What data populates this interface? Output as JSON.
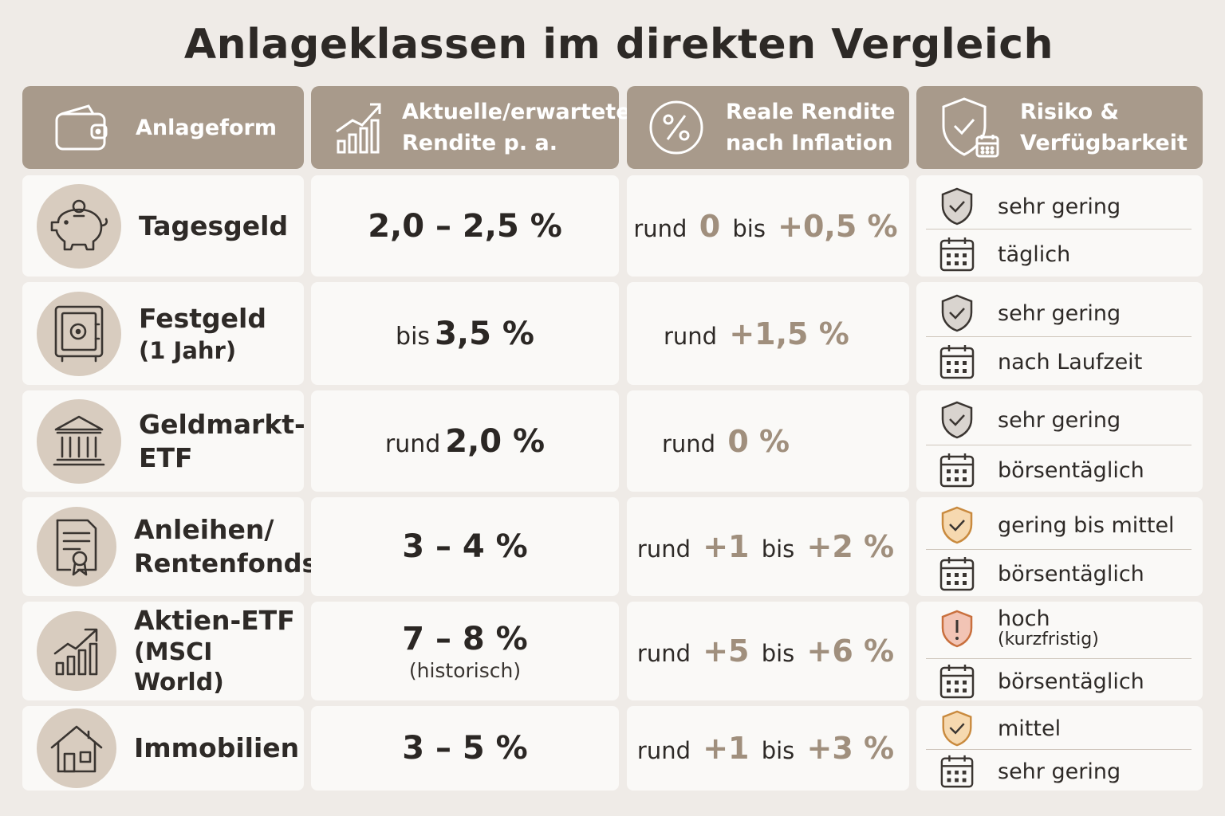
{
  "title": "Anlageklassen im direkten Vergleich",
  "headers": {
    "col1": "Anlageform",
    "col2_line1": "Aktuelle/erwartete",
    "col2_line2": "Rendite p. a.",
    "col3_line1": "Reale Rendite",
    "col3_line2": "nach Inflation",
    "col4_line1": "Risiko &",
    "col4_line2": "Verfügbarkeit"
  },
  "colors": {
    "header_bg": "#a89a8b",
    "icon_circle": "#d8ccbf",
    "accent_number": "#a08f7d",
    "shield_low": "#d9d4cf",
    "shield_medium": "#f6d9b0",
    "shield_high": "#f2c4b5"
  },
  "rows": [
    {
      "name": "Tagesgeld",
      "sub": "",
      "icon": "piggy-bank-icon",
      "return_prefix": "",
      "return_value": "2,0 – 2,5 %",
      "return_note": "",
      "real": {
        "w1": "rund",
        "n1": "0",
        "w2": "bis",
        "n2": "+0,5 %"
      },
      "risk": "sehr gering",
      "risk_sub": "",
      "risk_level": "low",
      "availability": "täglich"
    },
    {
      "name": "Festgeld",
      "sub": "(1 Jahr)",
      "icon": "safe-icon",
      "return_prefix": "bis",
      "return_value": "3,5 %",
      "return_note": "",
      "real": {
        "w1": "rund",
        "n1": "+1,5 %",
        "w2": "",
        "n2": ""
      },
      "risk": "sehr gering",
      "risk_sub": "",
      "risk_level": "low",
      "availability": "nach Laufzeit"
    },
    {
      "name": "Geldmarkt-",
      "sub": "ETF",
      "icon": "bank-building-icon",
      "return_prefix": "rund",
      "return_value": "2,0 %",
      "return_note": "",
      "real": {
        "w1": "rund",
        "n1": "0 %",
        "w2": "",
        "n2": ""
      },
      "risk": "sehr gering",
      "risk_sub": "",
      "risk_level": "low",
      "availability": "börsentäglich"
    },
    {
      "name": "Anleihen/",
      "sub": "Rentenfonds",
      "icon": "certificate-icon",
      "return_prefix": "",
      "return_value": "3 – 4 %",
      "return_note": "",
      "real": {
        "w1": "rund",
        "n1": "+1",
        "w2": "bis",
        "n2": "+2 %"
      },
      "risk": "gering bis mittel",
      "risk_sub": "",
      "risk_level": "medium",
      "availability": "börsentäglich"
    },
    {
      "name": "Aktien-ETF",
      "sub": "(MSCI World)",
      "icon": "growth-chart-icon",
      "return_prefix": "",
      "return_value": "7 – 8 %",
      "return_note": "(historisch)",
      "real": {
        "w1": "rund",
        "n1": "+5",
        "w2": "bis",
        "n2": "+6 %"
      },
      "risk": "hoch",
      "risk_sub": "(kurzfristig)",
      "risk_level": "high",
      "availability": "börsentäglich"
    },
    {
      "name": "Immobilien",
      "sub": "",
      "icon": "house-icon",
      "return_prefix": "",
      "return_value": "3 – 5 %",
      "return_note": "",
      "real": {
        "w1": "rund",
        "n1": "+1",
        "w2": "bis",
        "n2": "+3 %"
      },
      "risk": "mittel",
      "risk_sub": "",
      "risk_level": "medium",
      "availability": "sehr gering"
    }
  ]
}
